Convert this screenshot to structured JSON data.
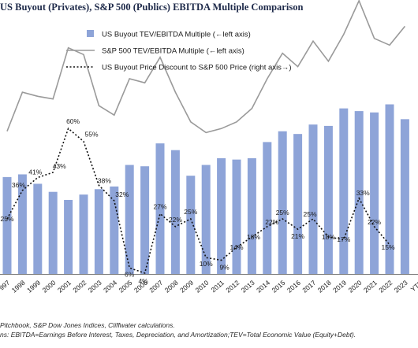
{
  "title": "US Buyout (Privates), S&P 500 (Publics) EBITDA Multiple Comparison",
  "source_line": "Pitchbook, S&P Dow Jones Indices, Cliffwater calculations.",
  "notes_line": "ns: EBITDA=Earnings Before Interest, Taxes, Depreciation, and Amortization;TEV=Total Economic Value (Equity+Debt).",
  "colors": {
    "bar": "#8ea4d8",
    "sp_line": "#9a9a9a",
    "discount_line": "#111111",
    "title": "#1e2a4a"
  },
  "chart_data": {
    "type": "bar+line",
    "categories": [
      "997",
      "1998",
      "1999",
      "2000",
      "2001",
      "2002",
      "2003",
      "2004",
      "2005",
      "2006",
      "2007",
      "2008",
      "2009",
      "2010",
      "2011",
      "2012",
      "2013",
      "2014",
      "2015",
      "2016",
      "2017",
      "2018",
      "2019",
      "2020",
      "2021",
      "2022",
      "2023",
      "YTD"
    ],
    "series": [
      {
        "name": "US Buyout TEV/EBITDA Multiple (←left axis)",
        "type": "bar",
        "axis": "left",
        "values": [
          7.2,
          7.4,
          6.7,
          6.1,
          5.5,
          5.9,
          6.3,
          6.5,
          8.1,
          8.0,
          9.7,
          9.2,
          7.3,
          8.1,
          8.6,
          8.5,
          8.6,
          9.8,
          10.6,
          10.4,
          11.1,
          11.0,
          12.3,
          12.1,
          12.0,
          12.6,
          11.5,
          null
        ]
      },
      {
        "name": "S&P 500 TEV/EBITDA Multiple (←left axis)",
        "type": "line",
        "axis": "left",
        "values": [
          10.6,
          13.5,
          13.2,
          13.0,
          16.8,
          16.3,
          12.5,
          11.8,
          14.5,
          14.2,
          16.1,
          13.5,
          11.3,
          10.5,
          10.8,
          11.3,
          12.3,
          14.5,
          16.4,
          15.4,
          17.3,
          15.8,
          17.8,
          20.3,
          17.5,
          17.0,
          18.4,
          null
        ]
      },
      {
        "name": "US Buyout Price Discount to S&P 500 Price (right axis→)",
        "type": "line",
        "axis": "right",
        "style": "dotted",
        "unit": "%",
        "values": [
          25,
          36,
          41,
          43,
          60,
          55,
          38,
          32,
          6,
          4,
          27,
          22,
          25,
          10,
          9,
          14,
          18,
          22,
          25,
          21,
          25,
          18,
          17,
          33,
          22,
          15,
          null,
          null
        ]
      }
    ],
    "data_labels": [
      "25%",
      "36%",
      "41%",
      "43%",
      "60%",
      "55%",
      "38%",
      "32%",
      "6%",
      "4%",
      "27%",
      "22%",
      "25%",
      "10%",
      "9%",
      "14%",
      "18%",
      "22%",
      "25%",
      "21%",
      "25%",
      "18%",
      "17%",
      "33%",
      "22%",
      "15%"
    ],
    "legend_position": "top-center",
    "grid": false
  }
}
